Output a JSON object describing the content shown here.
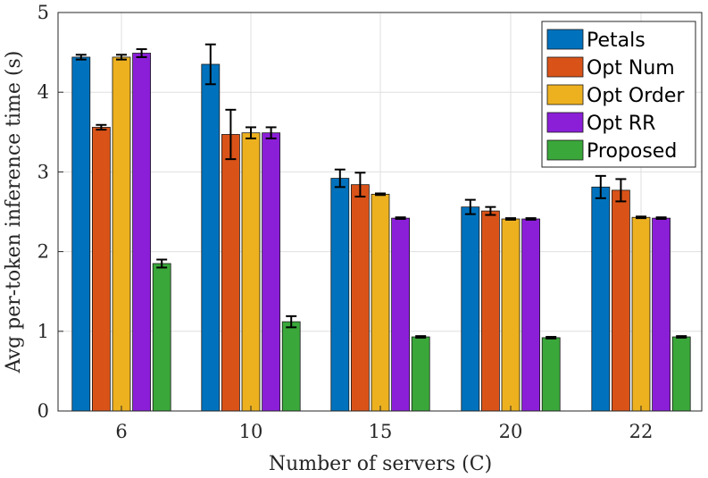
{
  "chart_data": {
    "type": "bar",
    "title": "",
    "xlabel": "Number of servers (C)",
    "ylabel": "Avg per-token inference time (s)",
    "ylim": [
      0,
      5
    ],
    "yticks": [
      0,
      1,
      2,
      3,
      4,
      5
    ],
    "grid": true,
    "legend_position": "top-right",
    "categories": [
      "6",
      "10",
      "15",
      "20",
      "22"
    ],
    "series": [
      {
        "name": "Petals",
        "color": "#0072BD",
        "values": [
          4.44,
          4.35,
          2.92,
          2.56,
          2.81
        ],
        "errors": [
          0.03,
          0.25,
          0.11,
          0.09,
          0.14
        ]
      },
      {
        "name": "Opt Num",
        "color": "#D95319",
        "values": [
          3.56,
          3.47,
          2.84,
          2.51,
          2.77
        ],
        "errors": [
          0.03,
          0.31,
          0.15,
          0.05,
          0.14
        ]
      },
      {
        "name": "Opt Order",
        "color": "#EDB120",
        "values": [
          4.44,
          3.49,
          2.72,
          2.41,
          2.43
        ],
        "errors": [
          0.03,
          0.07,
          0.01,
          0.01,
          0.01
        ]
      },
      {
        "name": "Opt RR",
        "color": "#7E2F8E",
        "display_color": "#8B1FD8",
        "values": [
          4.49,
          3.49,
          2.42,
          2.41,
          2.42
        ],
        "errors": [
          0.05,
          0.07,
          0.01,
          0.01,
          0.01
        ]
      },
      {
        "name": "Proposed",
        "color": "#3AA73A",
        "values": [
          1.85,
          1.12,
          0.93,
          0.92,
          0.93
        ],
        "errors": [
          0.05,
          0.07,
          0.01,
          0.01,
          0.01
        ]
      }
    ]
  }
}
